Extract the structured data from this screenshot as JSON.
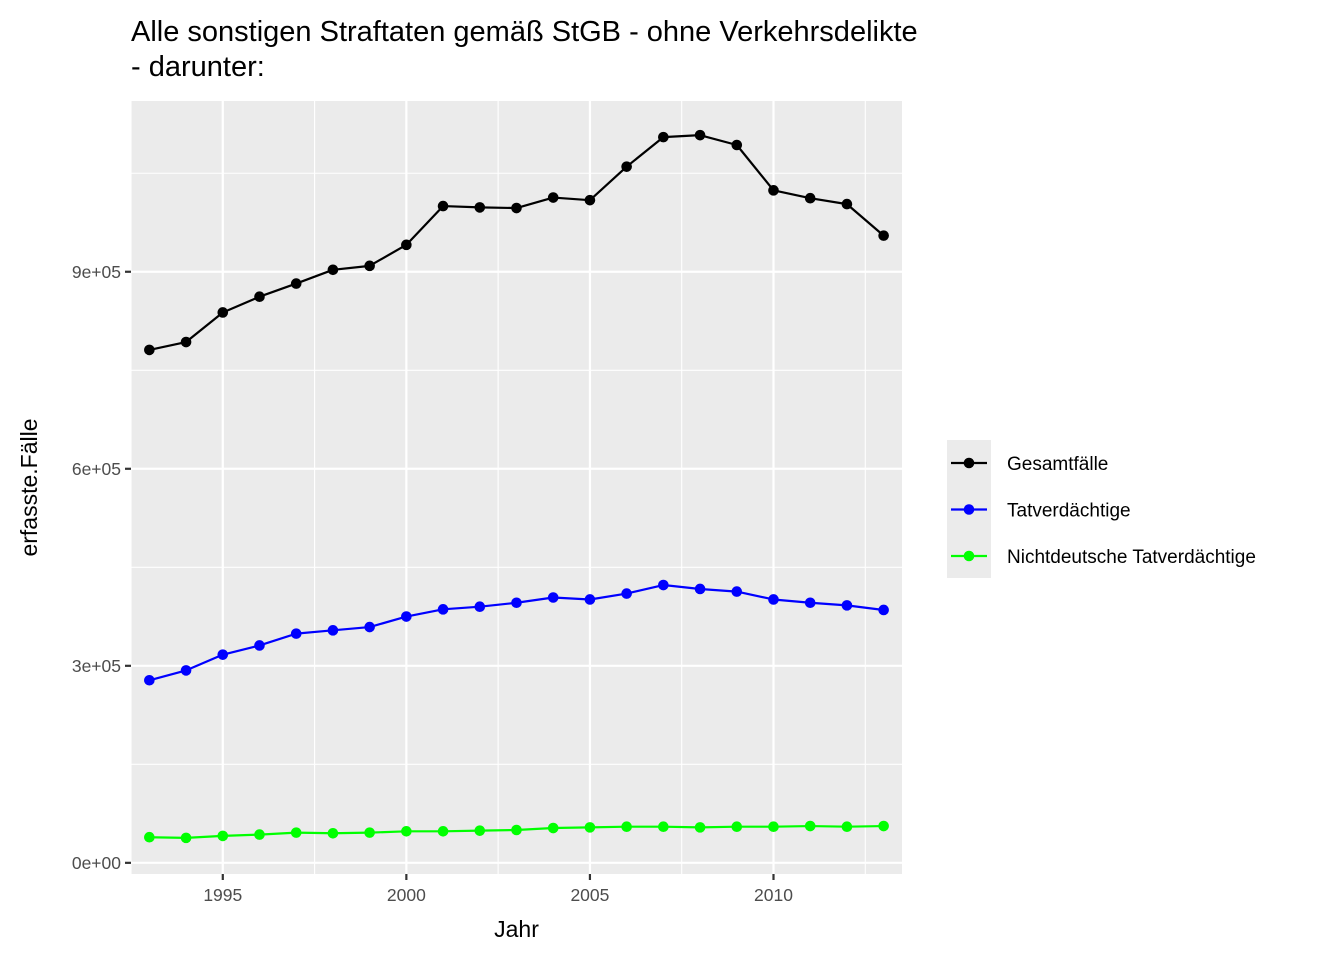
{
  "chart_data": {
    "type": "line",
    "title": [
      "Alle sonstigen Straftaten gemäß StGB - ohne Verkehrsdelikte",
      "- darunter:"
    ],
    "xlabel": "Jahr",
    "ylabel": "erfasste.Fälle",
    "xlim": [
      1992.5,
      2013.5
    ],
    "ylim": [
      -17000,
      1160000
    ],
    "x_ticks": [
      1995,
      2000,
      2005,
      2010
    ],
    "x_tick_labels": [
      "1995",
      "2000",
      "2005",
      "2010"
    ],
    "y_ticks": [
      0,
      300000,
      600000,
      900000
    ],
    "y_tick_labels": [
      "0e+00",
      "3e+05",
      "6e+05",
      "9e+05"
    ],
    "grid": true,
    "legend_position": "right",
    "x": [
      1993,
      1994,
      1995,
      1996,
      1997,
      1998,
      1999,
      2000,
      2001,
      2002,
      2003,
      2004,
      2005,
      2006,
      2007,
      2008,
      2009,
      2010,
      2011,
      2012,
      2013
    ],
    "series": [
      {
        "name": "Gesamtfälle",
        "color": "#000000",
        "values": [
          781000,
          793000,
          838000,
          862000,
          882000,
          903000,
          909000,
          941000,
          1000000,
          998000,
          997000,
          1013000,
          1009000,
          1060000,
          1105000,
          1108000,
          1093000,
          1024000,
          1012000,
          1003000,
          955000
        ]
      },
      {
        "name": "Tatverdächtige",
        "color": "#0000ff",
        "values": [
          278000,
          293000,
          317000,
          331000,
          349000,
          354000,
          359000,
          375000,
          386000,
          390000,
          396000,
          404000,
          401000,
          410000,
          423000,
          417000,
          413000,
          401000,
          396000,
          392000,
          385000
        ]
      },
      {
        "name": "Nichtdeutsche Tatverdächtige",
        "color": "#00ff00",
        "values": [
          39000,
          38000,
          41000,
          43000,
          46000,
          45000,
          46000,
          48000,
          48000,
          49000,
          50000,
          53000,
          54000,
          55000,
          55000,
          54000,
          55000,
          55000,
          56000,
          55000,
          56000
        ]
      }
    ]
  }
}
